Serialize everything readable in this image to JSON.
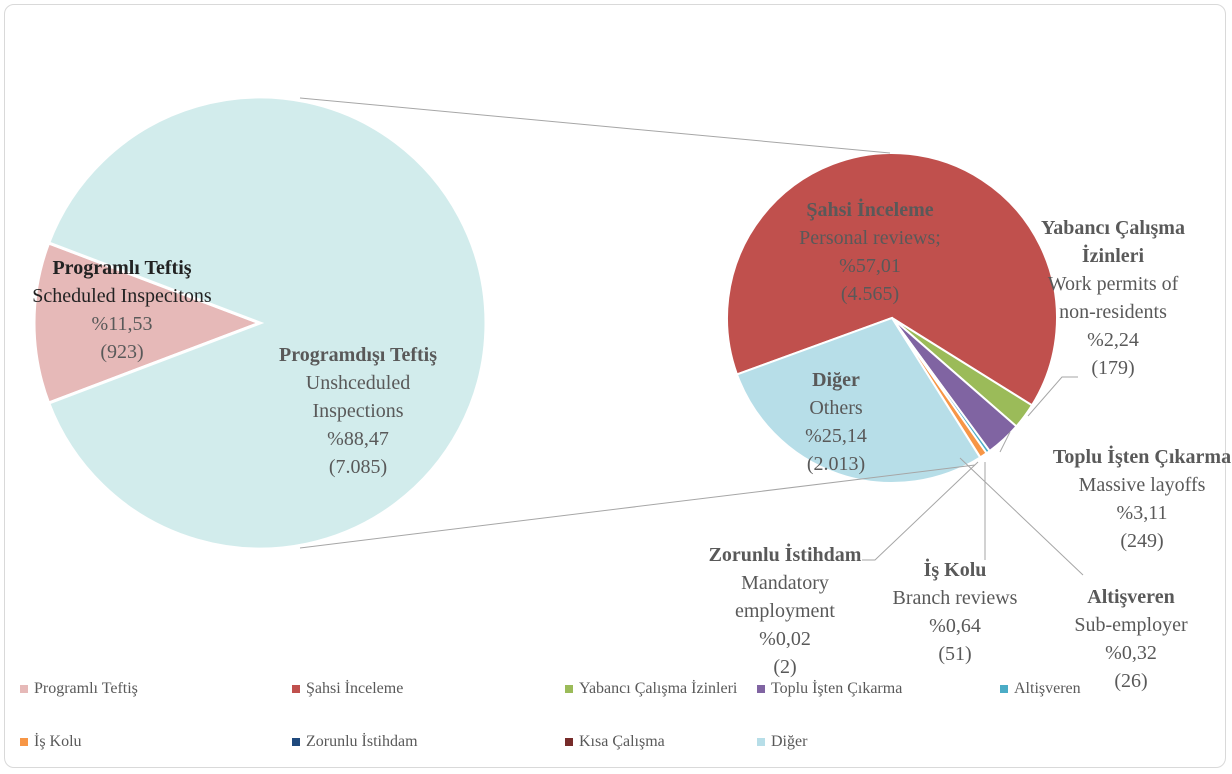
{
  "chart_data": {
    "type": "pie-of-pie",
    "legend": "bottom",
    "primary": [
      {
        "name": "Programlı Teftiş",
        "english": "Scheduled Inspecitons",
        "color": "#e6b9b8",
        "value": 11.53,
        "value_label": "%11,53",
        "count": 923,
        "count_label": "(923)"
      },
      {
        "name": "Programdışı Teftiş",
        "english": "Unshceduled Inspections",
        "color": "#d2ecec",
        "value": 88.47,
        "value_label": "%88,47",
        "count": 7085,
        "count_label": "(7.085)",
        "expanded": true
      }
    ],
    "secondary": [
      {
        "name": "Şahsi İnceleme",
        "english": "Personal reviews;",
        "color": "#c0504d",
        "value": 57.01,
        "value_label": "%57,01",
        "count": 4565,
        "count_label": "(4.565)"
      },
      {
        "name": "Yabancı Çalışma İzinleri",
        "english": "Work permits of non-residents",
        "color": "#9bbb59",
        "value": 2.24,
        "value_label": "%2,24",
        "count": 179,
        "count_label": "(179)"
      },
      {
        "name": "Toplu İşten Çıkarma",
        "english": "Massive layoffs",
        "color": "#8064a2",
        "value": 3.11,
        "value_label": "%3,11",
        "count": 249,
        "count_label": "(249)"
      },
      {
        "name": "Altişveren",
        "english": "Sub-employer",
        "color": "#4bacc6",
        "value": 0.32,
        "value_label": "%0,32",
        "count": 26,
        "count_label": "(26)"
      },
      {
        "name": "İş Kolu",
        "english": "Branch reviews",
        "color": "#f79646",
        "value": 0.64,
        "value_label": "%0,64",
        "count": 51,
        "count_label": "(51)"
      },
      {
        "name": "Zorunlu İstihdam",
        "english": "Mandatory employment",
        "color": "#1f497d",
        "value": 0.02,
        "value_label": "%0,02",
        "count": 2,
        "count_label": "(2)"
      },
      {
        "name": "Kısa Çalışma",
        "color": "#772c2a",
        "value": 0
      },
      {
        "name": "Diğer",
        "english": "Others",
        "color": "#b7dee8",
        "value": 25.14,
        "value_label": "%25,14",
        "count": 2013,
        "count_label": "(2.013)"
      }
    ]
  }
}
